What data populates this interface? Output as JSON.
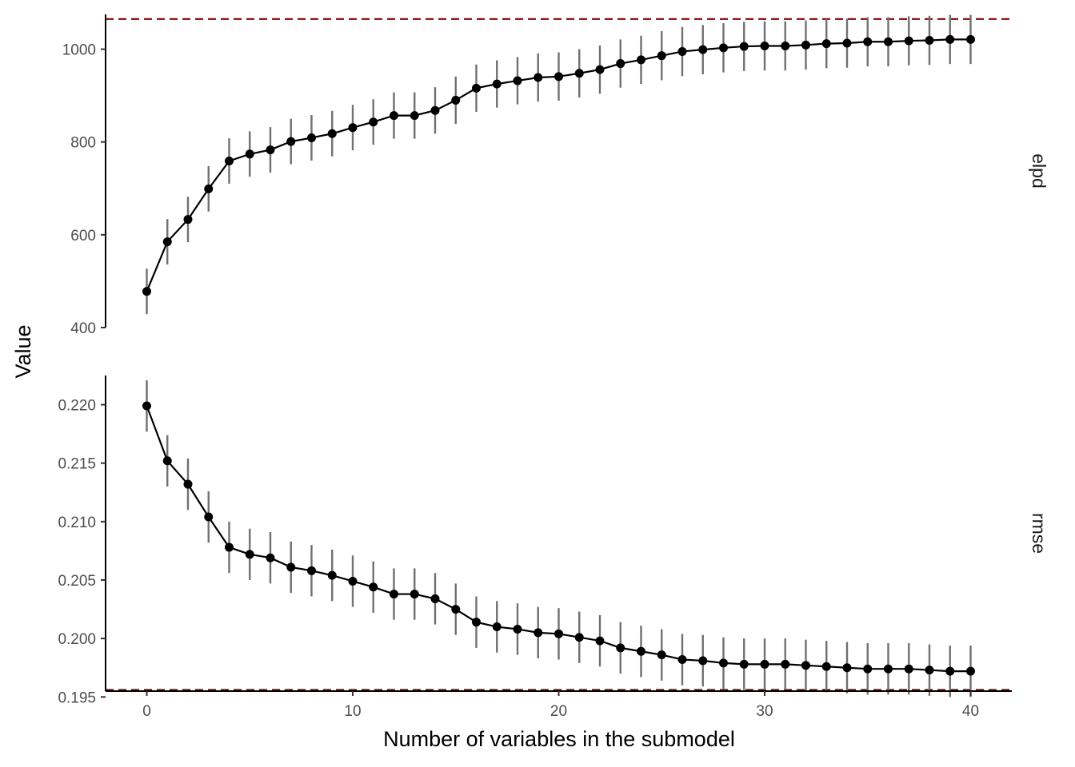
{
  "chart_data": {
    "type": "line",
    "xlabel": "Number of variables in the submodel",
    "ylabel": "Value",
    "xlim": [
      -2,
      42
    ],
    "x_ticks": [
      0,
      10,
      20,
      30,
      40
    ],
    "x": [
      0,
      1,
      2,
      3,
      4,
      5,
      6,
      7,
      8,
      9,
      10,
      11,
      12,
      13,
      14,
      15,
      16,
      17,
      18,
      19,
      20,
      21,
      22,
      23,
      24,
      25,
      26,
      27,
      28,
      29,
      30,
      31,
      32,
      33,
      34,
      35,
      36,
      37,
      38,
      39,
      40
    ],
    "grid": false,
    "panels": [
      {
        "strip": "elpd",
        "ylim": [
          400,
          1075
        ],
        "y_ticks": [
          400,
          600,
          800,
          1000
        ],
        "y_tick_labels": [
          "400",
          "600",
          "800",
          "1000"
        ],
        "reference": 1065,
        "values": [
          478,
          585,
          633,
          699,
          759,
          774,
          783,
          801,
          809,
          818,
          831,
          843,
          857,
          857,
          868,
          890,
          916,
          925,
          932,
          939,
          941,
          948,
          956,
          969,
          977,
          986,
          995,
          999,
          1003,
          1006,
          1007,
          1007,
          1009,
          1012,
          1013,
          1016,
          1016,
          1018,
          1019,
          1021,
          1021
        ],
        "error_half_width": [
          49,
          49,
          49,
          49,
          49,
          49,
          49,
          49,
          49,
          49,
          49,
          49,
          50,
          50,
          50,
          51,
          51,
          51,
          51,
          52,
          52,
          52,
          52,
          52,
          52,
          53,
          53,
          53,
          53,
          53,
          53,
          53,
          53,
          53,
          53,
          53,
          53,
          53,
          53,
          53,
          53
        ]
      },
      {
        "strip": "rmse",
        "ylim": [
          0.1955,
          0.2225
        ],
        "y_ticks": [
          0.195,
          0.2,
          0.205,
          0.21,
          0.215,
          0.22
        ],
        "y_tick_labels": [
          "0.195",
          "0.200",
          "0.205",
          "0.210",
          "0.215",
          "0.220"
        ],
        "reference": 0.1956,
        "values": [
          0.2199,
          0.2152,
          0.2132,
          0.2104,
          0.2078,
          0.2072,
          0.2069,
          0.2061,
          0.2058,
          0.2054,
          0.2049,
          0.2044,
          0.2038,
          0.2038,
          0.2034,
          0.2025,
          0.2014,
          0.201,
          0.2008,
          0.2005,
          0.2004,
          0.2001,
          0.1998,
          0.1992,
          0.1989,
          0.1986,
          0.1982,
          0.1981,
          0.1979,
          0.1978,
          0.1978,
          0.1978,
          0.1977,
          0.1976,
          0.1975,
          0.1974,
          0.1974,
          0.1974,
          0.1973,
          0.1972,
          0.1972
        ],
        "error_half_width": [
          0.0022,
          0.0022,
          0.0022,
          0.0022,
          0.0022,
          0.0022,
          0.0022,
          0.0022,
          0.0022,
          0.0022,
          0.0022,
          0.0022,
          0.0022,
          0.0022,
          0.0022,
          0.0022,
          0.0022,
          0.0022,
          0.0022,
          0.0022,
          0.0022,
          0.0022,
          0.0022,
          0.0022,
          0.0022,
          0.0022,
          0.0022,
          0.0022,
          0.0022,
          0.0022,
          0.0022,
          0.0022,
          0.0022,
          0.0022,
          0.0022,
          0.0022,
          0.0022,
          0.0022,
          0.0022,
          0.0022,
          0.0022
        ]
      }
    ]
  }
}
